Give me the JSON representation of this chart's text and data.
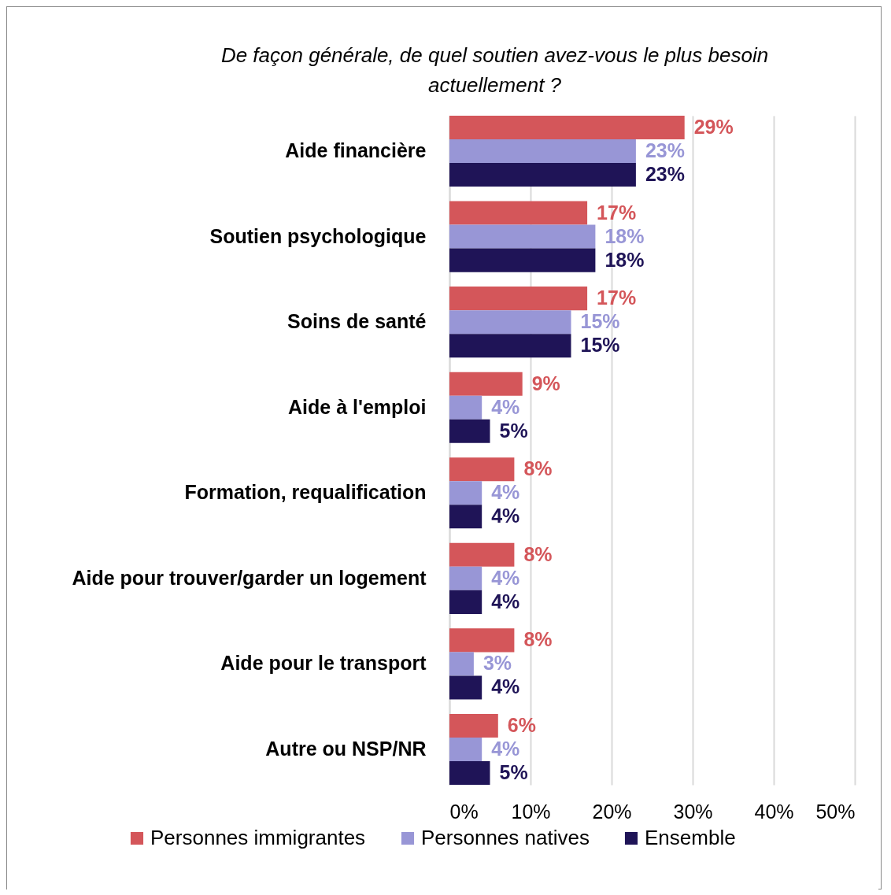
{
  "chart_data": {
    "type": "bar",
    "orientation": "horizontal",
    "title": "De façon générale, de quel soutien avez-vous le plus besoin actuellement ?",
    "categories": [
      "Aide financière",
      "Soutien psychologique",
      "Soins de santé",
      "Aide à l'emploi",
      "Formation, requalification",
      "Aide pour trouver/garder un logement",
      "Aide pour le transport",
      "Autre ou NSP/NR"
    ],
    "series": [
      {
        "name": "Personnes immigrantes",
        "color": "#d4565a",
        "values": [
          29,
          17,
          17,
          9,
          8,
          8,
          8,
          6
        ],
        "value_labels": [
          "29%",
          "17%",
          "17%",
          "9%",
          "8%",
          "8%",
          "8%",
          "6%"
        ]
      },
      {
        "name": "Personnes natives",
        "color": "#9896d6",
        "values": [
          23,
          18,
          15,
          4,
          4,
          4,
          3,
          4
        ],
        "value_labels": [
          "23%",
          "18%",
          "15%",
          "4%",
          "4%",
          "4%",
          "3%",
          "4%"
        ]
      },
      {
        "name": "Ensemble",
        "color": "#1f1457",
        "values": [
          23,
          18,
          15,
          5,
          4,
          4,
          4,
          5
        ],
        "value_labels": [
          "23%",
          "18%",
          "15%",
          "5%",
          "4%",
          "4%",
          "4%",
          "5%"
        ]
      }
    ],
    "xlim": [
      0,
      50
    ],
    "xticks": [
      {
        "value": 0,
        "label": "0%"
      },
      {
        "value": 10,
        "label": "10%"
      },
      {
        "value": 20,
        "label": "20%"
      },
      {
        "value": 30,
        "label": "30%"
      },
      {
        "value": 40,
        "label": "40%"
      },
      {
        "value": 50,
        "label": "50%"
      }
    ],
    "grid": "x",
    "legend": "bottom"
  }
}
